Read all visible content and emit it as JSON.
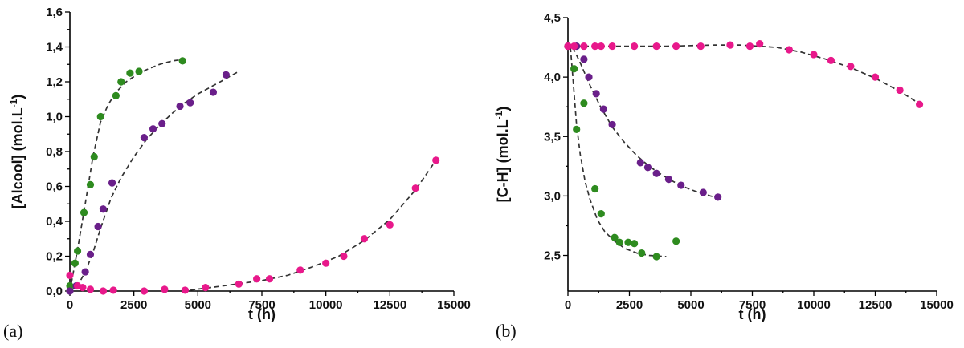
{
  "chart_data": [
    {
      "type": "scatter",
      "panel_label": "(a)",
      "xlabel": "t (h)",
      "ylabel": "[Alcool] (mol.L",
      "ylabel_sup": "-1",
      "ylabel_close": ")",
      "xlim": [
        0,
        15000
      ],
      "ylim": [
        0,
        1.6
      ],
      "x_ticks": [
        0,
        2500,
        5000,
        7500,
        10000,
        12500,
        15000
      ],
      "x_tick_labels": [
        "0",
        "2500",
        "5000",
        "7500",
        "10000",
        "12500",
        "15000"
      ],
      "y_ticks": [
        0,
        0.2,
        0.4,
        0.6,
        0.8,
        1.0,
        1.2,
        1.4,
        1.6
      ],
      "y_tick_labels": [
        "0,0",
        "0,2",
        "0,4",
        "0,6",
        "0,8",
        "1,0",
        "1,2",
        "1,4",
        "1,6"
      ],
      "grid": false,
      "legend": "none",
      "series": [
        {
          "color": "#2e8b1f",
          "x": [
            0,
            200,
            300,
            550,
            800,
            950,
            1200,
            1800,
            2000,
            2350,
            2700,
            4400
          ],
          "y": [
            0.03,
            0.16,
            0.23,
            0.45,
            0.61,
            0.77,
            1.0,
            1.12,
            1.2,
            1.25,
            1.26,
            1.32
          ],
          "fit_x": [
            0,
            300,
            600,
            900,
            1200,
            1500,
            1800,
            2200,
            2600,
            3000,
            3500,
            4000,
            4500
          ],
          "fit_y": [
            0.0,
            0.24,
            0.5,
            0.77,
            0.97,
            1.07,
            1.14,
            1.2,
            1.24,
            1.27,
            1.3,
            1.32,
            1.33
          ]
        },
        {
          "color": "#6a1f8a",
          "x": [
            0,
            250,
            600,
            800,
            1100,
            1300,
            1650,
            2900,
            3250,
            3600,
            4300,
            4700,
            5600,
            6100
          ],
          "y": [
            0.0,
            0.03,
            0.11,
            0.21,
            0.37,
            0.47,
            0.62,
            0.88,
            0.93,
            0.96,
            1.06,
            1.08,
            1.14,
            1.24
          ],
          "fit_x": [
            0,
            300,
            600,
            900,
            1200,
            1600,
            2000,
            2500,
            3000,
            3500,
            4000,
            4500,
            5000,
            5500,
            6000,
            6600
          ],
          "fit_y": [
            0.0,
            0.03,
            0.11,
            0.22,
            0.36,
            0.53,
            0.65,
            0.77,
            0.87,
            0.95,
            1.02,
            1.08,
            1.13,
            1.17,
            1.21,
            1.26
          ]
        },
        {
          "color": "#e8198b",
          "x": [
            0,
            300,
            500,
            800,
            1300,
            1700,
            2900,
            3700,
            4500,
            5300,
            6600,
            7300,
            7800,
            9000,
            10000,
            10700,
            11500,
            12500,
            13500,
            14300
          ],
          "y": [
            0.09,
            0.03,
            0.02,
            0.01,
            0.0,
            0.005,
            0.0,
            0.01,
            0.005,
            0.02,
            0.04,
            0.07,
            0.07,
            0.12,
            0.16,
            0.2,
            0.3,
            0.38,
            0.59,
            0.75
          ],
          "fit_x": [
            4400,
            5500,
            6500,
            7500,
            8500,
            9500,
            10500,
            11500,
            12500,
            13500,
            14300
          ],
          "fit_y": [
            0.0,
            0.02,
            0.04,
            0.06,
            0.09,
            0.14,
            0.2,
            0.29,
            0.41,
            0.58,
            0.75
          ]
        }
      ]
    },
    {
      "type": "scatter",
      "panel_label": "(b)",
      "xlabel": "t (h)",
      "ylabel": "[C-H] (mol.L",
      "ylabel_sup": "-1",
      "ylabel_close": ")",
      "xlim": [
        0,
        15000
      ],
      "ylim": [
        2.2,
        4.5
      ],
      "x_ticks": [
        0,
        2500,
        5000,
        7500,
        10000,
        12500,
        15000
      ],
      "x_tick_labels": [
        "0",
        "2500",
        "5000",
        "7500",
        "10000",
        "12500",
        "15000"
      ],
      "y_ticks": [
        2.5,
        3.0,
        3.5,
        4.0,
        4.5
      ],
      "y_tick_labels": [
        "2,5",
        "3,0",
        "3,5",
        "4,0",
        "4,5"
      ],
      "grid": false,
      "legend": "none",
      "series": [
        {
          "color": "#2e8b1f",
          "x": [
            0,
            250,
            350,
            650,
            1100,
            1350,
            1900,
            2100,
            2450,
            2700,
            3000,
            3600,
            4400
          ],
          "y": [
            4.26,
            4.07,
            3.56,
            3.78,
            3.06,
            2.85,
            2.65,
            2.61,
            2.61,
            2.6,
            2.52,
            2.49,
            2.62
          ],
          "fit_x": [
            100,
            200,
            350,
            500,
            700,
            900,
            1200,
            1500,
            1900,
            2300,
            2800,
            3300,
            4000
          ],
          "fit_y": [
            4.25,
            4.0,
            3.6,
            3.35,
            3.12,
            2.97,
            2.8,
            2.7,
            2.62,
            2.56,
            2.52,
            2.5,
            2.49
          ]
        },
        {
          "color": "#6a1f8a",
          "x": [
            0,
            350,
            650,
            850,
            1150,
            1450,
            1800,
            2950,
            3250,
            3600,
            4100,
            4600,
            5500,
            6100
          ],
          "y": [
            4.26,
            4.26,
            4.15,
            4.0,
            3.86,
            3.73,
            3.6,
            3.28,
            3.24,
            3.19,
            3.14,
            3.09,
            3.03,
            2.99
          ],
          "fit_x": [
            200,
            500,
            900,
            1300,
            1800,
            2300,
            2800,
            3300,
            3800,
            4300,
            4800,
            5300,
            5800,
            6200
          ],
          "fit_y": [
            4.25,
            4.12,
            3.93,
            3.76,
            3.58,
            3.45,
            3.34,
            3.25,
            3.18,
            3.12,
            3.07,
            3.03,
            3.0,
            2.98
          ]
        },
        {
          "color": "#e8198b",
          "x": [
            0,
            250,
            650,
            1100,
            1350,
            1800,
            2700,
            3600,
            4400,
            5400,
            6600,
            7400,
            7800,
            9000,
            10000,
            10700,
            11500,
            12500,
            13500,
            14300
          ],
          "y": [
            4.26,
            4.26,
            4.26,
            4.26,
            4.26,
            4.26,
            4.26,
            4.26,
            4.26,
            4.26,
            4.27,
            4.26,
            4.28,
            4.23,
            4.19,
            4.14,
            4.09,
            4.0,
            3.89,
            3.77
          ],
          "fit_x": [
            0,
            2000,
            4000,
            6000,
            7000,
            7800,
            8500,
            9500,
            10500,
            11500,
            12500,
            13500,
            14500
          ],
          "fit_y": [
            4.26,
            4.26,
            4.26,
            4.27,
            4.27,
            4.26,
            4.25,
            4.21,
            4.15,
            4.08,
            3.99,
            3.88,
            3.75
          ]
        }
      ]
    }
  ]
}
